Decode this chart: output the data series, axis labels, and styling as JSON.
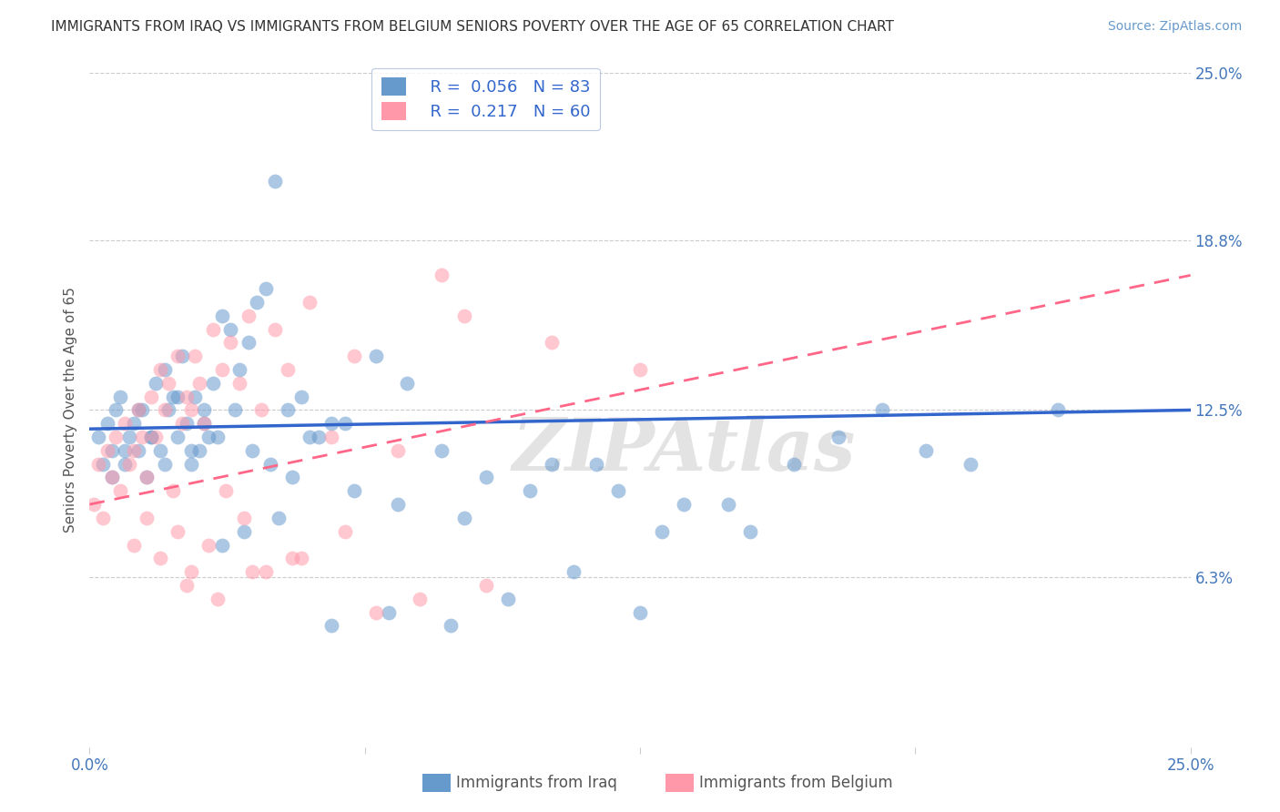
{
  "title": "IMMIGRANTS FROM IRAQ VS IMMIGRANTS FROM BELGIUM SENIORS POVERTY OVER THE AGE OF 65 CORRELATION CHART",
  "source": "Source: ZipAtlas.com",
  "ylabel": "Seniors Poverty Over the Age of 65",
  "xlim": [
    0.0,
    25.0
  ],
  "ylim": [
    0.0,
    25.0
  ],
  "yticks_right": [
    6.3,
    12.5,
    18.8,
    25.0
  ],
  "ytick_labels_right": [
    "6.3%",
    "12.5%",
    "18.8%",
    "25.0%"
  ],
  "hlines": [
    6.3,
    12.5,
    18.8,
    25.0
  ],
  "iraq_color": "#6699CC",
  "iraq_color_line": "#3366CC",
  "belgium_color": "#FF99AA",
  "belgium_color_line": "#FF6688",
  "iraq_R": 0.056,
  "iraq_N": 83,
  "belgium_R": 0.217,
  "belgium_N": 60,
  "legend_label_iraq": "Immigrants from Iraq",
  "legend_label_belgium": "Immigrants from Belgium",
  "watermark": "ZIPAtlas",
  "iraq_scatter_x": [
    0.2,
    0.3,
    0.4,
    0.5,
    0.6,
    0.7,
    0.8,
    0.9,
    1.0,
    1.1,
    1.2,
    1.3,
    1.4,
    1.5,
    1.6,
    1.7,
    1.8,
    1.9,
    2.0,
    2.1,
    2.2,
    2.3,
    2.4,
    2.5,
    2.6,
    2.7,
    2.8,
    3.0,
    3.2,
    3.4,
    3.6,
    3.8,
    4.0,
    4.2,
    4.5,
    4.8,
    5.2,
    5.8,
    6.5,
    7.2,
    8.0,
    9.0,
    10.5,
    12.0,
    13.5,
    15.0,
    16.0,
    17.0,
    18.0,
    19.0,
    20.0,
    22.0,
    0.5,
    0.8,
    1.1,
    1.4,
    1.7,
    2.0,
    2.3,
    2.6,
    2.9,
    3.3,
    3.7,
    4.1,
    4.6,
    5.0,
    5.5,
    6.0,
    7.0,
    8.5,
    10.0,
    11.5,
    13.0,
    14.5,
    3.0,
    3.5,
    4.3,
    5.5,
    6.8,
    8.2,
    9.5,
    11.0,
    12.5
  ],
  "iraq_scatter_y": [
    11.5,
    10.5,
    12.0,
    11.0,
    12.5,
    13.0,
    10.5,
    11.5,
    12.0,
    11.0,
    12.5,
    10.0,
    11.5,
    13.5,
    11.0,
    14.0,
    12.5,
    13.0,
    11.5,
    14.5,
    12.0,
    10.5,
    13.0,
    11.0,
    12.5,
    11.5,
    13.5,
    16.0,
    15.5,
    14.0,
    15.0,
    16.5,
    17.0,
    21.0,
    12.5,
    13.0,
    11.5,
    12.0,
    14.5,
    13.5,
    11.0,
    10.0,
    10.5,
    9.5,
    9.0,
    8.0,
    10.5,
    11.5,
    12.5,
    11.0,
    10.5,
    12.5,
    10.0,
    11.0,
    12.5,
    11.5,
    10.5,
    13.0,
    11.0,
    12.0,
    11.5,
    12.5,
    11.0,
    10.5,
    10.0,
    11.5,
    12.0,
    9.5,
    9.0,
    8.5,
    9.5,
    10.5,
    8.0,
    9.0,
    7.5,
    8.0,
    8.5,
    4.5,
    5.0,
    4.5,
    5.5,
    6.5,
    5.0
  ],
  "belgium_scatter_x": [
    0.1,
    0.2,
    0.3,
    0.4,
    0.5,
    0.6,
    0.7,
    0.8,
    0.9,
    1.0,
    1.1,
    1.2,
    1.3,
    1.4,
    1.5,
    1.6,
    1.7,
    1.8,
    1.9,
    2.0,
    2.1,
    2.2,
    2.3,
    2.4,
    2.5,
    2.6,
    2.8,
    3.0,
    3.2,
    3.4,
    3.6,
    3.9,
    4.2,
    4.5,
    5.0,
    5.5,
    6.0,
    7.0,
    8.0,
    8.5,
    10.5,
    1.0,
    1.3,
    1.6,
    2.0,
    2.3,
    2.7,
    3.1,
    3.5,
    4.0,
    4.8,
    5.8,
    7.5,
    2.2,
    2.9,
    3.7,
    4.6,
    6.5,
    9.0,
    12.5
  ],
  "belgium_scatter_y": [
    9.0,
    10.5,
    8.5,
    11.0,
    10.0,
    11.5,
    9.5,
    12.0,
    10.5,
    11.0,
    12.5,
    11.5,
    10.0,
    13.0,
    11.5,
    14.0,
    12.5,
    13.5,
    9.5,
    14.5,
    12.0,
    13.0,
    12.5,
    14.5,
    13.5,
    12.0,
    15.5,
    14.0,
    15.0,
    13.5,
    16.0,
    12.5,
    15.5,
    14.0,
    16.5,
    11.5,
    14.5,
    11.0,
    17.5,
    16.0,
    15.0,
    7.5,
    8.5,
    7.0,
    8.0,
    6.5,
    7.5,
    9.5,
    8.5,
    6.5,
    7.0,
    8.0,
    5.5,
    6.0,
    5.5,
    6.5,
    7.0,
    5.0,
    6.0,
    14.0
  ],
  "iraq_trend_x": [
    0.0,
    25.0
  ],
  "iraq_trend_y": [
    11.8,
    12.5
  ],
  "belgium_trend_x": [
    0.0,
    25.0
  ],
  "belgium_trend_y": [
    9.0,
    17.5
  ],
  "background_color": "#FFFFFF",
  "title_fontsize": 11,
  "axis_label_fontsize": 11,
  "tick_fontsize": 12,
  "legend_fontsize": 13,
  "source_fontsize": 10
}
